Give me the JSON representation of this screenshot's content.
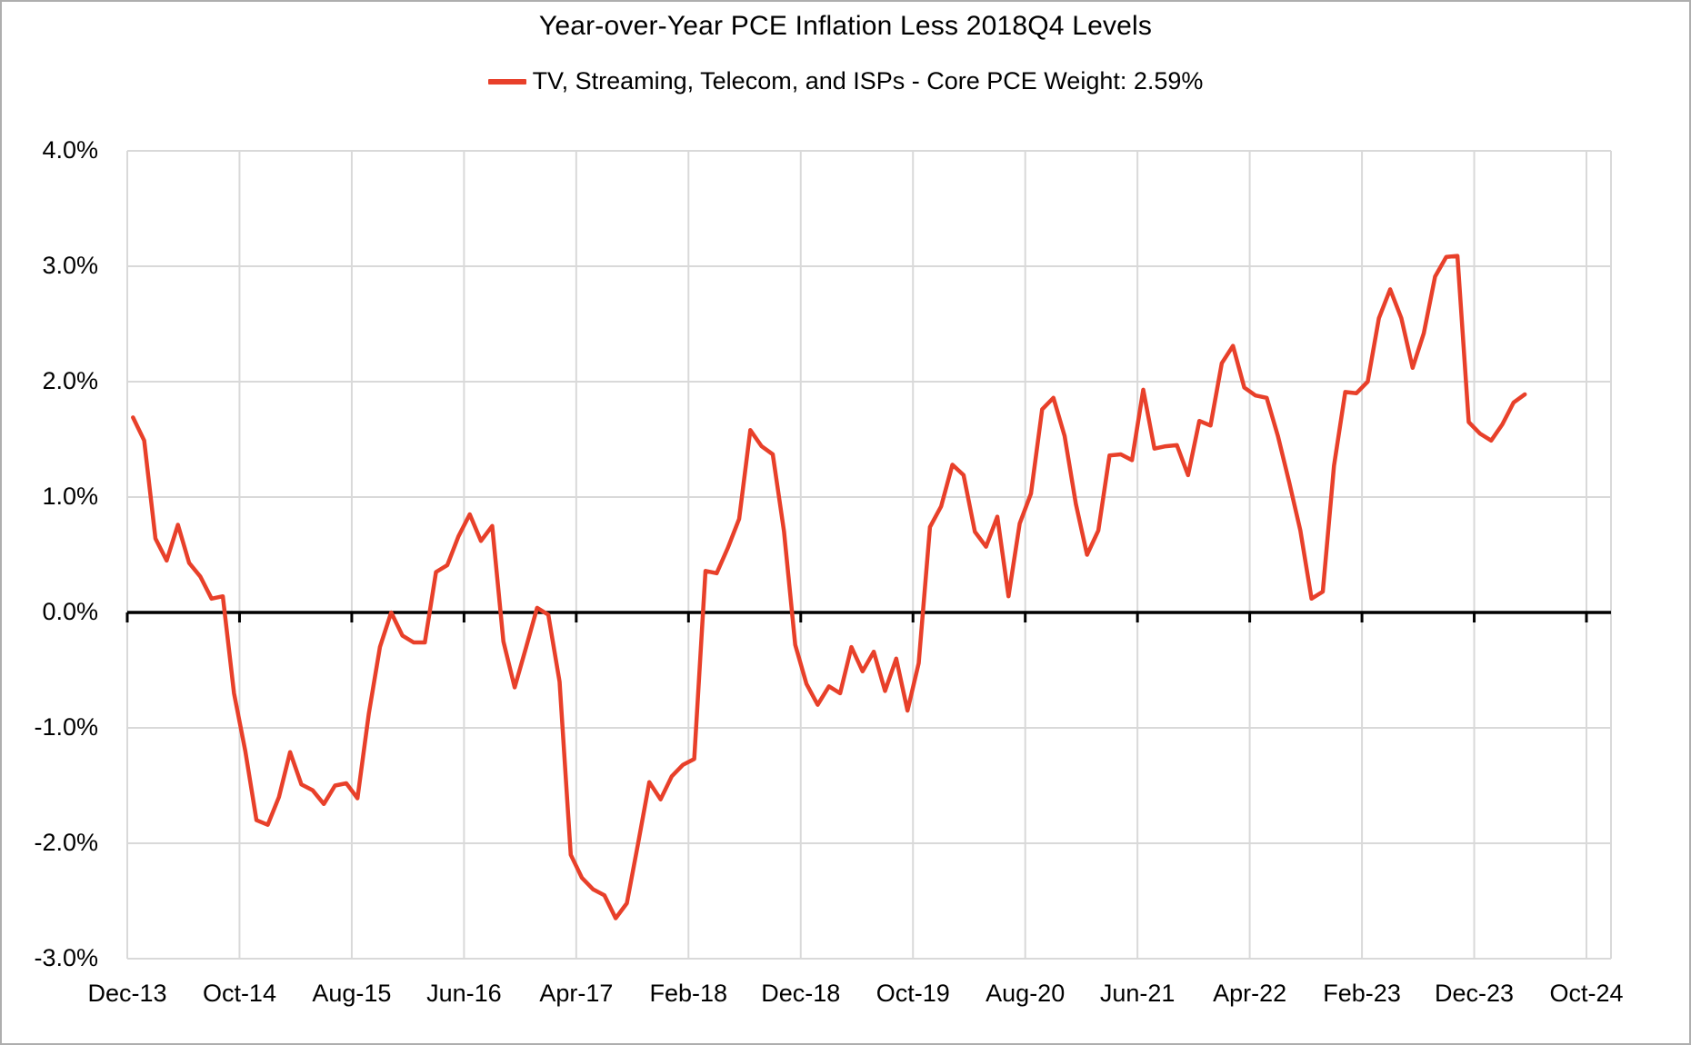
{
  "chart": {
    "title": "Year-over-Year PCE Inflation Less 2018Q4 Levels",
    "legend": "TV, Streaming, Telecom, and ISPs - Core PCE Weight: 2.59%"
  },
  "chart_data": {
    "type": "line",
    "title": "Year-over-Year PCE Inflation Less 2018Q4 Levels",
    "xlabel": "",
    "ylabel": "",
    "ylim": [
      -3.0,
      4.0
    ],
    "y_tick_labels": [
      "4.0%",
      "3.0%",
      "2.0%",
      "1.0%",
      "0.0%",
      "-1.0%",
      "-2.0%",
      "-3.0%"
    ],
    "y_tick_values": [
      4,
      3,
      2,
      1,
      0,
      -1,
      -2,
      -3
    ],
    "x_tick_labels": [
      "Dec-13",
      "Oct-14",
      "Aug-15",
      "Jun-16",
      "Apr-17",
      "Feb-18",
      "Dec-18",
      "Oct-19",
      "Aug-20",
      "Jun-21",
      "Apr-22",
      "Feb-23",
      "Dec-23",
      "Oct-24"
    ],
    "x_tick_month_index": [
      0,
      10,
      20,
      30,
      40,
      50,
      60,
      70,
      80,
      90,
      100,
      110,
      120,
      130
    ],
    "grid": true,
    "legend_position": "top-center",
    "line_color": "#E8402A",
    "gridline_color": "#D9D9D9",
    "zero_axis_color": "#000000",
    "series": [
      {
        "name": "TV, Streaming, Telecom, and ISPs - Core PCE Weight: 2.59%",
        "x": [
          "Dec-13",
          "Jan-14",
          "Feb-14",
          "Mar-14",
          "Apr-14",
          "May-14",
          "Jun-14",
          "Jul-14",
          "Aug-14",
          "Sep-14",
          "Oct-14",
          "Nov-14",
          "Dec-14",
          "Jan-15",
          "Feb-15",
          "Mar-15",
          "Apr-15",
          "May-15",
          "Jun-15",
          "Jul-15",
          "Aug-15",
          "Sep-15",
          "Oct-15",
          "Nov-15",
          "Dec-15",
          "Jan-16",
          "Feb-16",
          "Mar-16",
          "Apr-16",
          "May-16",
          "Jun-16",
          "Jul-16",
          "Aug-16",
          "Sep-16",
          "Oct-16",
          "Nov-16",
          "Dec-16",
          "Jan-17",
          "Feb-17",
          "Mar-17",
          "Apr-17",
          "May-17",
          "Jun-17",
          "Jul-17",
          "Aug-17",
          "Sep-17",
          "Oct-17",
          "Nov-17",
          "Dec-17",
          "Jan-18",
          "Feb-18",
          "Mar-18",
          "Apr-18",
          "May-18",
          "Jun-18",
          "Jul-18",
          "Aug-18",
          "Sep-18",
          "Oct-18",
          "Nov-18",
          "Dec-18",
          "Jan-19",
          "Feb-19",
          "Mar-19",
          "Apr-19",
          "May-19",
          "Jun-19",
          "Jul-19",
          "Aug-19",
          "Sep-19",
          "Oct-19",
          "Nov-19",
          "Dec-19",
          "Jan-20",
          "Feb-20",
          "Mar-20",
          "Apr-20",
          "May-20",
          "Jun-20",
          "Jul-20",
          "Aug-20",
          "Sep-20",
          "Oct-20",
          "Nov-20",
          "Dec-20",
          "Jan-21",
          "Feb-21",
          "Mar-21",
          "Apr-21",
          "May-21",
          "Jun-21",
          "Jul-21",
          "Aug-21",
          "Sep-21",
          "Oct-21",
          "Nov-21",
          "Dec-21",
          "Jan-22",
          "Feb-22",
          "Mar-22",
          "Apr-22",
          "May-22",
          "Jun-22",
          "Jul-22",
          "Aug-22",
          "Sep-22",
          "Oct-22",
          "Nov-22",
          "Dec-22",
          "Jan-23",
          "Feb-23",
          "Mar-23",
          "Apr-23",
          "May-23",
          "Jun-23",
          "Jul-23",
          "Aug-23",
          "Sep-23",
          "Oct-23",
          "Nov-23",
          "Dec-23",
          "Jan-24",
          "Feb-24",
          "Mar-24",
          "Apr-24"
        ],
        "values": [
          1.69,
          1.49,
          0.64,
          0.45,
          0.76,
          0.43,
          0.31,
          0.12,
          0.14,
          -0.7,
          -1.2,
          -1.8,
          -1.84,
          -1.6,
          -1.21,
          -1.49,
          -1.54,
          -1.66,
          -1.5,
          -1.48,
          -1.61,
          -0.88,
          -0.3,
          0.0,
          -0.2,
          -0.26,
          -0.26,
          0.35,
          0.41,
          0.66,
          0.85,
          0.62,
          0.75,
          -0.25,
          -0.65,
          -0.31,
          0.04,
          -0.02,
          -0.6,
          -2.1,
          -2.3,
          -2.4,
          -2.45,
          -2.65,
          -2.52,
          -2.0,
          -1.47,
          -1.62,
          -1.42,
          -1.32,
          -1.27,
          0.36,
          0.34,
          0.56,
          0.81,
          1.58,
          1.44,
          1.37,
          0.7,
          -0.28,
          -0.62,
          -0.8,
          -0.64,
          -0.7,
          -0.3,
          -0.51,
          -0.34,
          -0.68,
          -0.4,
          -0.85,
          -0.44,
          0.74,
          0.92,
          1.28,
          1.19,
          0.7,
          0.57,
          0.83,
          0.14,
          0.77,
          1.03,
          1.76,
          1.86,
          1.53,
          0.94,
          0.5,
          0.71,
          1.36,
          1.37,
          1.32,
          1.93,
          1.42,
          1.44,
          1.45,
          1.19,
          1.66,
          1.62,
          2.16,
          2.31,
          1.95,
          1.88,
          1.86,
          1.53,
          1.13,
          0.71,
          0.12,
          0.18,
          1.27,
          1.91,
          1.9,
          2.0,
          2.55,
          2.8,
          2.55,
          2.12,
          2.42,
          2.91,
          3.08,
          3.09,
          1.65,
          1.55,
          1.49,
          1.63,
          1.82,
          1.89
        ]
      }
    ]
  }
}
